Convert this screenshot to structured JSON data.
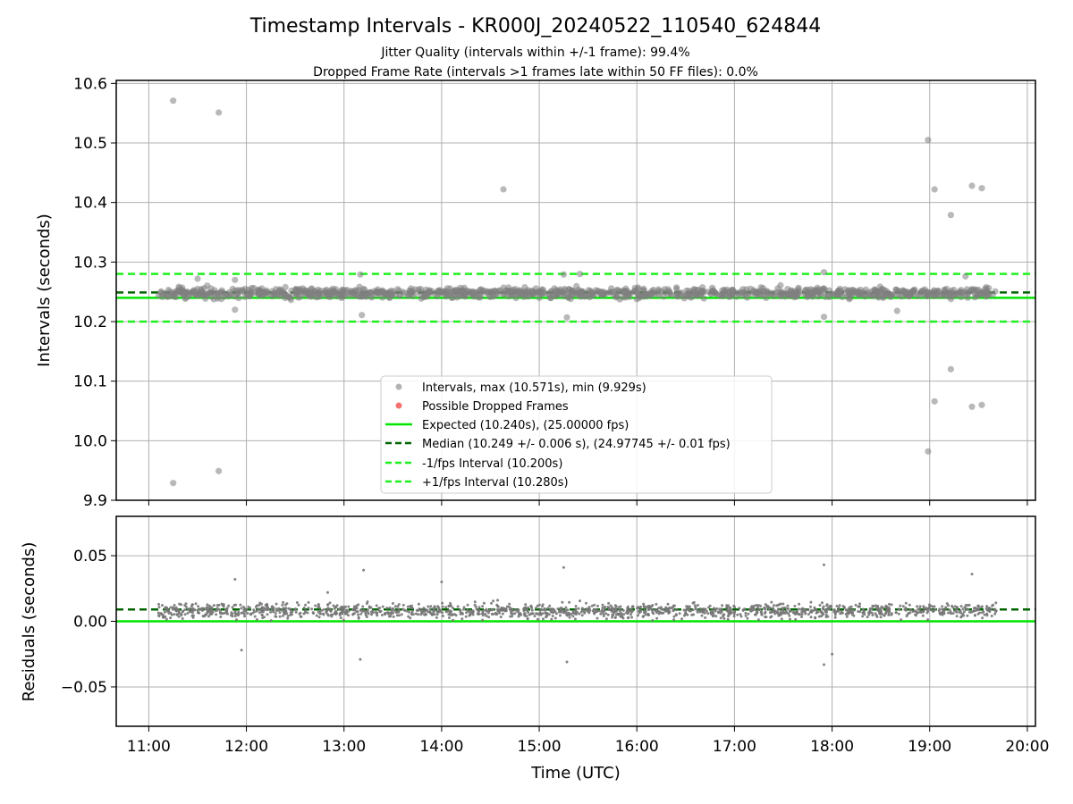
{
  "chart_data": [
    {
      "type": "scatter",
      "title": "Timestamp Intervals - KR000J_20240522_110540_624844",
      "subtitle_lines": [
        "Jitter Quality (intervals within +/-1 frame): 99.4%",
        "Dropped Frame Rate (intervals >1 frames late within 50 FF files): 0.0%"
      ],
      "xlabel": "",
      "ylabel": "Intervals (seconds)",
      "xlim": [
        "10:40",
        "20:05"
      ],
      "ylim": [
        9.9,
        10.605
      ],
      "y_ticks": [
        9.9,
        10.0,
        10.1,
        10.2,
        10.3,
        10.4,
        10.5,
        10.6
      ],
      "y_tick_labels": [
        "9.9",
        "10.0",
        "10.1",
        "10.2",
        "10.3",
        "10.4",
        "10.5",
        "10.6"
      ],
      "grid": true,
      "legend_position": "lower center",
      "series": [
        {
          "name": "Intervals, max (10.571s), min (9.929s)",
          "kind": "scatter",
          "color": "#808080",
          "band": {
            "x_start": "11:06",
            "x_end": "19:41",
            "center": 10.248,
            "spread": 0.012
          },
          "points": [
            {
              "x": "11:15",
              "y": 10.571
            },
            {
              "x": "11:43",
              "y": 10.551
            },
            {
              "x": "18:59",
              "y": 10.505
            },
            {
              "x": "14:38",
              "y": 10.422
            },
            {
              "x": "19:03",
              "y": 10.422
            },
            {
              "x": "19:26",
              "y": 10.428
            },
            {
              "x": "19:32",
              "y": 10.424
            },
            {
              "x": "19:13",
              "y": 10.379
            },
            {
              "x": "19:13",
              "y": 10.12
            },
            {
              "x": "19:03",
              "y": 10.066
            },
            {
              "x": "19:26",
              "y": 10.057
            },
            {
              "x": "19:32",
              "y": 10.06
            },
            {
              "x": "18:59",
              "y": 9.982
            },
            {
              "x": "11:43",
              "y": 9.949
            },
            {
              "x": "11:15",
              "y": 9.929
            },
            {
              "x": "17:55",
              "y": 10.283
            },
            {
              "x": "13:10",
              "y": 10.279
            },
            {
              "x": "15:15",
              "y": 10.279
            },
            {
              "x": "15:25",
              "y": 10.28
            },
            {
              "x": "15:17",
              "y": 10.207
            },
            {
              "x": "13:11",
              "y": 10.211
            },
            {
              "x": "17:55",
              "y": 10.208
            },
            {
              "x": "11:30",
              "y": 10.272
            },
            {
              "x": "11:53",
              "y": 10.27
            },
            {
              "x": "11:53",
              "y": 10.22
            },
            {
              "x": "19:22",
              "y": 10.276
            },
            {
              "x": "18:40",
              "y": 10.218
            }
          ]
        },
        {
          "name": "Possible Dropped Frames",
          "kind": "scatter",
          "color": "#f05050",
          "points": []
        },
        {
          "name": "Expected (10.240s), (25.00000 fps)",
          "kind": "hline",
          "y": 10.24,
          "color": "#00e600",
          "style": "solid"
        },
        {
          "name": "Median (10.249 +/- 0.006 s), (24.97745 +/- 0.01 fps)",
          "kind": "hline",
          "y": 10.249,
          "color": "#006400",
          "style": "dashed"
        },
        {
          "name": "-1/fps Interval (10.200s)",
          "kind": "hline",
          "y": 10.2,
          "color": "#1ef01e",
          "style": "dashed"
        },
        {
          "name": "+1/fps Interval (10.280s)",
          "kind": "hline",
          "y": 10.28,
          "color": "#1ef01e",
          "style": "dashed"
        }
      ]
    },
    {
      "type": "scatter",
      "title": "",
      "xlabel": "Time (UTC)",
      "ylabel": "Residuals (seconds)",
      "xlim": [
        "10:40",
        "20:05"
      ],
      "ylim": [
        -0.08,
        0.08
      ],
      "x_ticks": [
        "11:00",
        "12:00",
        "13:00",
        "14:00",
        "15:00",
        "16:00",
        "17:00",
        "18:00",
        "19:00",
        "20:00"
      ],
      "y_ticks": [
        -0.05,
        0.0,
        0.05
      ],
      "y_tick_labels": [
        "−0.05",
        "0.00",
        "0.05"
      ],
      "grid": true,
      "series": [
        {
          "name": "",
          "kind": "scatter",
          "color": "#777777",
          "band": {
            "x_start": "11:06",
            "x_end": "19:41",
            "center": 0.008,
            "spread": 0.008
          },
          "points": [
            {
              "x": "13:12",
              "y": 0.039
            },
            {
              "x": "15:15",
              "y": 0.041
            },
            {
              "x": "17:55",
              "y": 0.043
            },
            {
              "x": "19:26",
              "y": 0.036
            },
            {
              "x": "13:10",
              "y": -0.029
            },
            {
              "x": "15:17",
              "y": -0.031
            },
            {
              "x": "17:55",
              "y": -0.033
            },
            {
              "x": "11:53",
              "y": 0.032
            },
            {
              "x": "11:57",
              "y": -0.022
            },
            {
              "x": "18:00",
              "y": -0.025
            },
            {
              "x": "14:00",
              "y": 0.03
            },
            {
              "x": "12:50",
              "y": 0.022
            }
          ]
        },
        {
          "name": "",
          "kind": "hline",
          "y": 0.0,
          "color": "#00e600",
          "style": "solid"
        },
        {
          "name": "",
          "kind": "hline",
          "y": 0.009,
          "color": "#006400",
          "style": "dashed"
        }
      ]
    }
  ]
}
